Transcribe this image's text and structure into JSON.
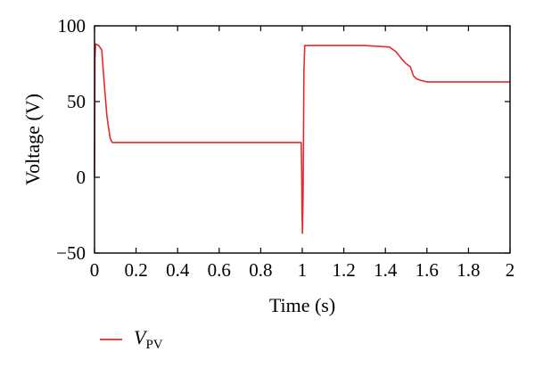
{
  "chart_data": {
    "type": "line",
    "title": "",
    "xlabel": "Time (s)",
    "ylabel": "Voltage (V)",
    "xlim": [
      0,
      2
    ],
    "ylim": [
      -50,
      100
    ],
    "x_ticks": [
      "0",
      "0.2",
      "0.4",
      "0.6",
      "0.8",
      "1",
      "1.2",
      "1.4",
      "1.6",
      "1.8",
      "2"
    ],
    "y_ticks": [
      "−50",
      "0",
      "50",
      "100"
    ],
    "grid": false,
    "legend_position": "bottom-left",
    "legend": {
      "main": "V",
      "sub": "PV"
    },
    "series": [
      {
        "name": "VPV",
        "color": "#e8282a",
        "x": [
          0,
          0.002,
          0.005,
          0.02,
          0.035,
          0.045,
          0.06,
          0.075,
          0.085,
          0.1,
          0.3,
          0.5,
          0.7,
          0.9,
          0.995,
          0.997,
          0.999,
          1.001,
          1.004,
          1.008,
          1.012,
          1.02,
          1.1,
          1.2,
          1.3,
          1.42,
          1.45,
          1.48,
          1.5,
          1.52,
          1.535,
          1.55,
          1.57,
          1.6,
          1.7,
          1.8,
          2.0
        ],
        "y": [
          0,
          78,
          88,
          87,
          84,
          65,
          40,
          26,
          23,
          23,
          23,
          23,
          23,
          23,
          23,
          5,
          -25,
          -37,
          -10,
          70,
          87,
          87,
          87,
          87,
          87,
          86,
          83,
          78,
          75,
          73,
          67,
          65,
          64,
          63,
          63,
          63,
          63
        ]
      }
    ]
  }
}
